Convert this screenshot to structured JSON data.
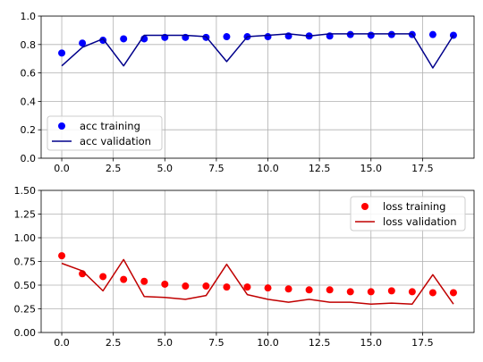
{
  "chart_data": [
    {
      "type": "line",
      "xlim": [
        -1,
        20
      ],
      "ylim": [
        0,
        1
      ],
      "xticks": [
        0,
        2.5,
        5,
        7.5,
        10,
        12.5,
        15,
        17.5
      ],
      "xtick_labels": [
        "0.0",
        "2.5",
        "5.0",
        "7.5",
        "10.0",
        "12.5",
        "15.0",
        "17.5"
      ],
      "yticks": [
        0,
        0.2,
        0.4,
        0.6,
        0.8,
        1.0
      ],
      "ytick_labels": [
        "0.0",
        "0.2",
        "0.4",
        "0.6",
        "0.8",
        "1.0"
      ],
      "grid": true,
      "legend_position": "lower-left",
      "x": [
        0,
        1,
        2,
        3,
        4,
        5,
        6,
        7,
        8,
        9,
        10,
        11,
        12,
        13,
        14,
        15,
        16,
        17,
        18,
        19
      ],
      "series": [
        {
          "name": "acc training",
          "style": "markers",
          "color": "#0000ff",
          "values": [
            0.74,
            0.81,
            0.83,
            0.84,
            0.84,
            0.85,
            0.85,
            0.85,
            0.855,
            0.855,
            0.855,
            0.86,
            0.86,
            0.86,
            0.87,
            0.865,
            0.87,
            0.87,
            0.87,
            0.865
          ]
        },
        {
          "name": "acc validation",
          "style": "line",
          "color": "#00008b",
          "values": [
            0.65,
            0.78,
            0.84,
            0.65,
            0.865,
            0.865,
            0.865,
            0.855,
            0.68,
            0.855,
            0.865,
            0.875,
            0.86,
            0.875,
            0.875,
            0.875,
            0.875,
            0.875,
            0.635,
            0.865
          ]
        }
      ]
    },
    {
      "type": "line",
      "xlim": [
        -1,
        20
      ],
      "ylim": [
        0,
        1.5
      ],
      "xticks": [
        0,
        2.5,
        5,
        7.5,
        10,
        12.5,
        15,
        17.5
      ],
      "xtick_labels": [
        "0.0",
        "2.5",
        "5.0",
        "7.5",
        "10.0",
        "12.5",
        "15.0",
        "17.5"
      ],
      "yticks": [
        0,
        0.25,
        0.5,
        0.75,
        1.0,
        1.25,
        1.5
      ],
      "ytick_labels": [
        "0.00",
        "0.25",
        "0.50",
        "0.75",
        "1.00",
        "1.25",
        "1.50"
      ],
      "grid": true,
      "legend_position": "upper-right",
      "x": [
        0,
        1,
        2,
        3,
        4,
        5,
        6,
        7,
        8,
        9,
        10,
        11,
        12,
        13,
        14,
        15,
        16,
        17,
        18,
        19
      ],
      "series": [
        {
          "name": "loss training",
          "style": "markers",
          "color": "#ff0000",
          "values": [
            0.81,
            0.62,
            0.59,
            0.56,
            0.54,
            0.51,
            0.49,
            0.49,
            0.48,
            0.48,
            0.47,
            0.46,
            0.45,
            0.45,
            0.43,
            0.43,
            0.44,
            0.43,
            0.42,
            0.42
          ]
        },
        {
          "name": "loss validation",
          "style": "line",
          "color": "#c00000",
          "values": [
            0.73,
            0.65,
            0.44,
            0.77,
            0.38,
            0.37,
            0.35,
            0.39,
            0.72,
            0.4,
            0.35,
            0.32,
            0.35,
            0.32,
            0.32,
            0.3,
            0.31,
            0.3,
            0.61,
            0.3
          ]
        }
      ]
    }
  ]
}
